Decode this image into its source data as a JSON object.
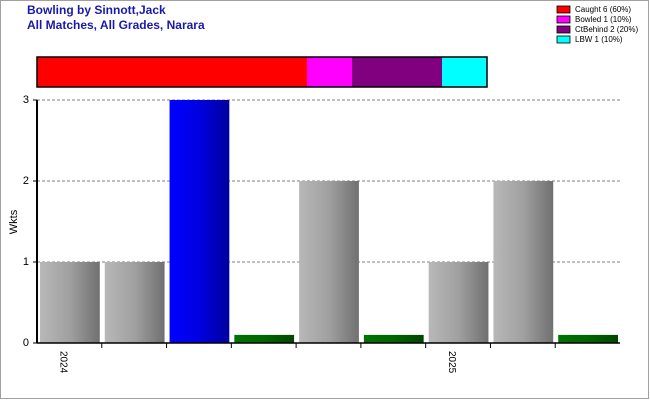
{
  "chart_data": [
    {
      "type": "stacked-bar",
      "series": [
        {
          "name": "Caught 6 (60%)",
          "color": "#ff0000",
          "values": [
            6
          ]
        },
        {
          "name": "Bowled 1 (10%)",
          "color": "#ff00ff",
          "values": [
            1
          ]
        },
        {
          "name": "CtBehind 2 (20%)",
          "color": "#800080",
          "values": [
            2
          ]
        },
        {
          "name": "LBW 1 (10%)",
          "color": "#00ffff",
          "values": [
            1
          ]
        }
      ],
      "legend": "top-right"
    },
    {
      "type": "bar",
      "title": "Bowling by Sinnott,Jack",
      "subtitle": "All Matches, All Grades, Narara",
      "ylabel": "Wkts",
      "categories": [
        "2024",
        null,
        null,
        null,
        null,
        null,
        "2025",
        null,
        null
      ],
      "values": [
        1,
        1,
        3,
        0.1,
        2,
        0.1,
        1,
        2,
        0.1
      ],
      "colors": [
        "#a0a0a0",
        "#a0a0a0",
        "#0000e0",
        "#006400",
        "#a0a0a0",
        "#006400",
        "#a0a0a0",
        "#a0a0a0",
        "#006400"
      ],
      "ylim": [
        0,
        3
      ],
      "yticks": [
        0,
        1,
        2,
        3
      ],
      "grid": true
    }
  ]
}
